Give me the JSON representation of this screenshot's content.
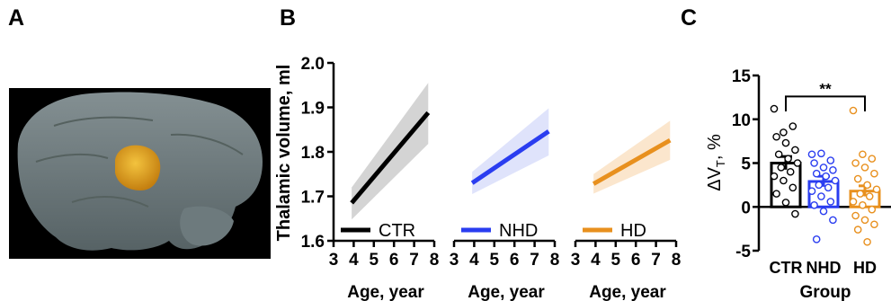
{
  "panels": {
    "a": {
      "letter": "A"
    },
    "b": {
      "letter": "B"
    },
    "c": {
      "letter": "C"
    }
  },
  "colors": {
    "CTR": "#000000",
    "NHD": "#2a3df0",
    "HD": "#e8901e",
    "CTR_band": "#d4d4d4",
    "NHD_band": "#dfe3fb",
    "HD_band": "#fbe6cd",
    "brain_background": "#000000",
    "brain_tissue": "#7d8a8e",
    "thalamus": "#e0a21e"
  },
  "chart_data": [
    {
      "id": "B",
      "type": "line",
      "ylabel": "Thalamic volume, ml",
      "ylim": [
        1.6,
        2.0
      ],
      "yticks": [
        "1.6",
        "1.7",
        "1.8",
        "1.9",
        "2.0"
      ],
      "subplots": [
        {
          "name": "CTR",
          "xlabel": "Age, year",
          "xlim": [
            3,
            8
          ],
          "xticks": [
            "3",
            "4",
            "5",
            "6",
            "7",
            "8"
          ],
          "line": [
            [
              3.9,
              1.685
            ],
            [
              7.7,
              1.888
            ]
          ],
          "band_upper": [
            [
              3.9,
              1.72
            ],
            [
              7.7,
              1.955
            ]
          ],
          "band_lower": [
            [
              3.9,
              1.648
            ],
            [
              7.7,
              1.818
            ]
          ]
        },
        {
          "name": "NHD",
          "xlabel": "Age, year",
          "xlim": [
            3,
            8
          ],
          "xticks": [
            "3",
            "4",
            "5",
            "6",
            "7",
            "8"
          ],
          "line": [
            [
              3.9,
              1.73
            ],
            [
              7.7,
              1.846
            ]
          ],
          "band_upper": [
            [
              3.9,
              1.755
            ],
            [
              7.7,
              1.898
            ]
          ],
          "band_lower": [
            [
              3.9,
              1.705
            ],
            [
              7.7,
              1.792
            ]
          ]
        },
        {
          "name": "HD",
          "xlabel": "Age, year",
          "xlim": [
            3,
            8
          ],
          "xticks": [
            "3",
            "4",
            "5",
            "6",
            "7",
            "8"
          ],
          "line": [
            [
              3.9,
              1.728
            ],
            [
              7.7,
              1.826
            ]
          ],
          "band_upper": [
            [
              3.9,
              1.75
            ],
            [
              7.7,
              1.87
            ]
          ],
          "band_lower": [
            [
              3.9,
              1.706
            ],
            [
              7.7,
              1.782
            ]
          ]
        }
      ]
    },
    {
      "id": "C",
      "type": "bar",
      "categories": [
        "CTR",
        "NHD",
        "HD"
      ],
      "values": [
        5.0,
        2.9,
        1.8
      ],
      "sem": [
        0.75,
        0.6,
        0.6
      ],
      "xlabel": "Group",
      "ylabel": "ΔV",
      "ylabel_sub": "T",
      "ylabel_suffix": ", %",
      "ylim": [
        -5,
        15
      ],
      "yticks": [
        "-5",
        "0",
        "5",
        "10",
        "15"
      ],
      "significance": {
        "from": "CTR",
        "to": "HD",
        "label": "**"
      },
      "points": [
        [
          11.2,
          8.5,
          9.2,
          8.0,
          7.3,
          6.5,
          6.0,
          5.5,
          5.0,
          4.5,
          4.0,
          3.5,
          3.0,
          2.2,
          1.5,
          0.5,
          -0.8
        ],
        [
          6.0,
          6.1,
          5.3,
          5.0,
          4.5,
          4.2,
          3.8,
          3.5,
          3.0,
          2.5,
          2.2,
          1.8,
          1.2,
          0.6,
          0.2,
          -0.5,
          -1.5,
          -3.7
        ],
        [
          11.0,
          6.0,
          5.5,
          5.0,
          4.5,
          3.8,
          3.2,
          2.5,
          2.0,
          1.5,
          1.2,
          0.6,
          0.2,
          -0.3,
          -1.0,
          -1.5,
          -2.0,
          -2.6,
          -4.0
        ]
      ]
    }
  ]
}
